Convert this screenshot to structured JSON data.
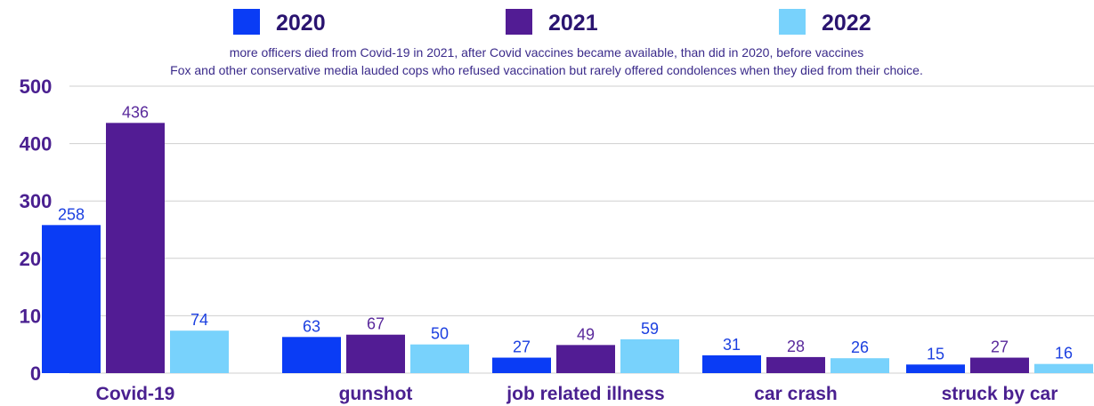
{
  "chart_data": {
    "type": "bar",
    "categories": [
      "Covid-19",
      "gunshot",
      "job related illness",
      "car crash",
      "struck by car"
    ],
    "series": [
      {
        "name": "2020",
        "values": [
          258,
          63,
          27,
          31,
          15
        ],
        "color": "#0a3cf5",
        "label_color": "#1b3fe0"
      },
      {
        "name": "2021",
        "values": [
          436,
          67,
          49,
          28,
          27
        ],
        "color": "#521c94",
        "label_color": "#5a2a9c"
      },
      {
        "name": "2022",
        "values": [
          74,
          50,
          59,
          26,
          16
        ],
        "color": "#78d2fc",
        "label_color": "#1b3fe0"
      }
    ],
    "subtitle_lines": [
      "more officers died from Covid-19 in 2021, after Covid vaccines became available, than did in 2020, before vaccines",
      "Fox and other conservative media lauded cops who refused vaccination but rarely offered condolences when they died from their choice."
    ],
    "yticks": [
      0,
      100,
      200,
      300,
      400,
      500
    ],
    "ylim": [
      0,
      500
    ],
    "grid": true,
    "legend_position": "top"
  }
}
